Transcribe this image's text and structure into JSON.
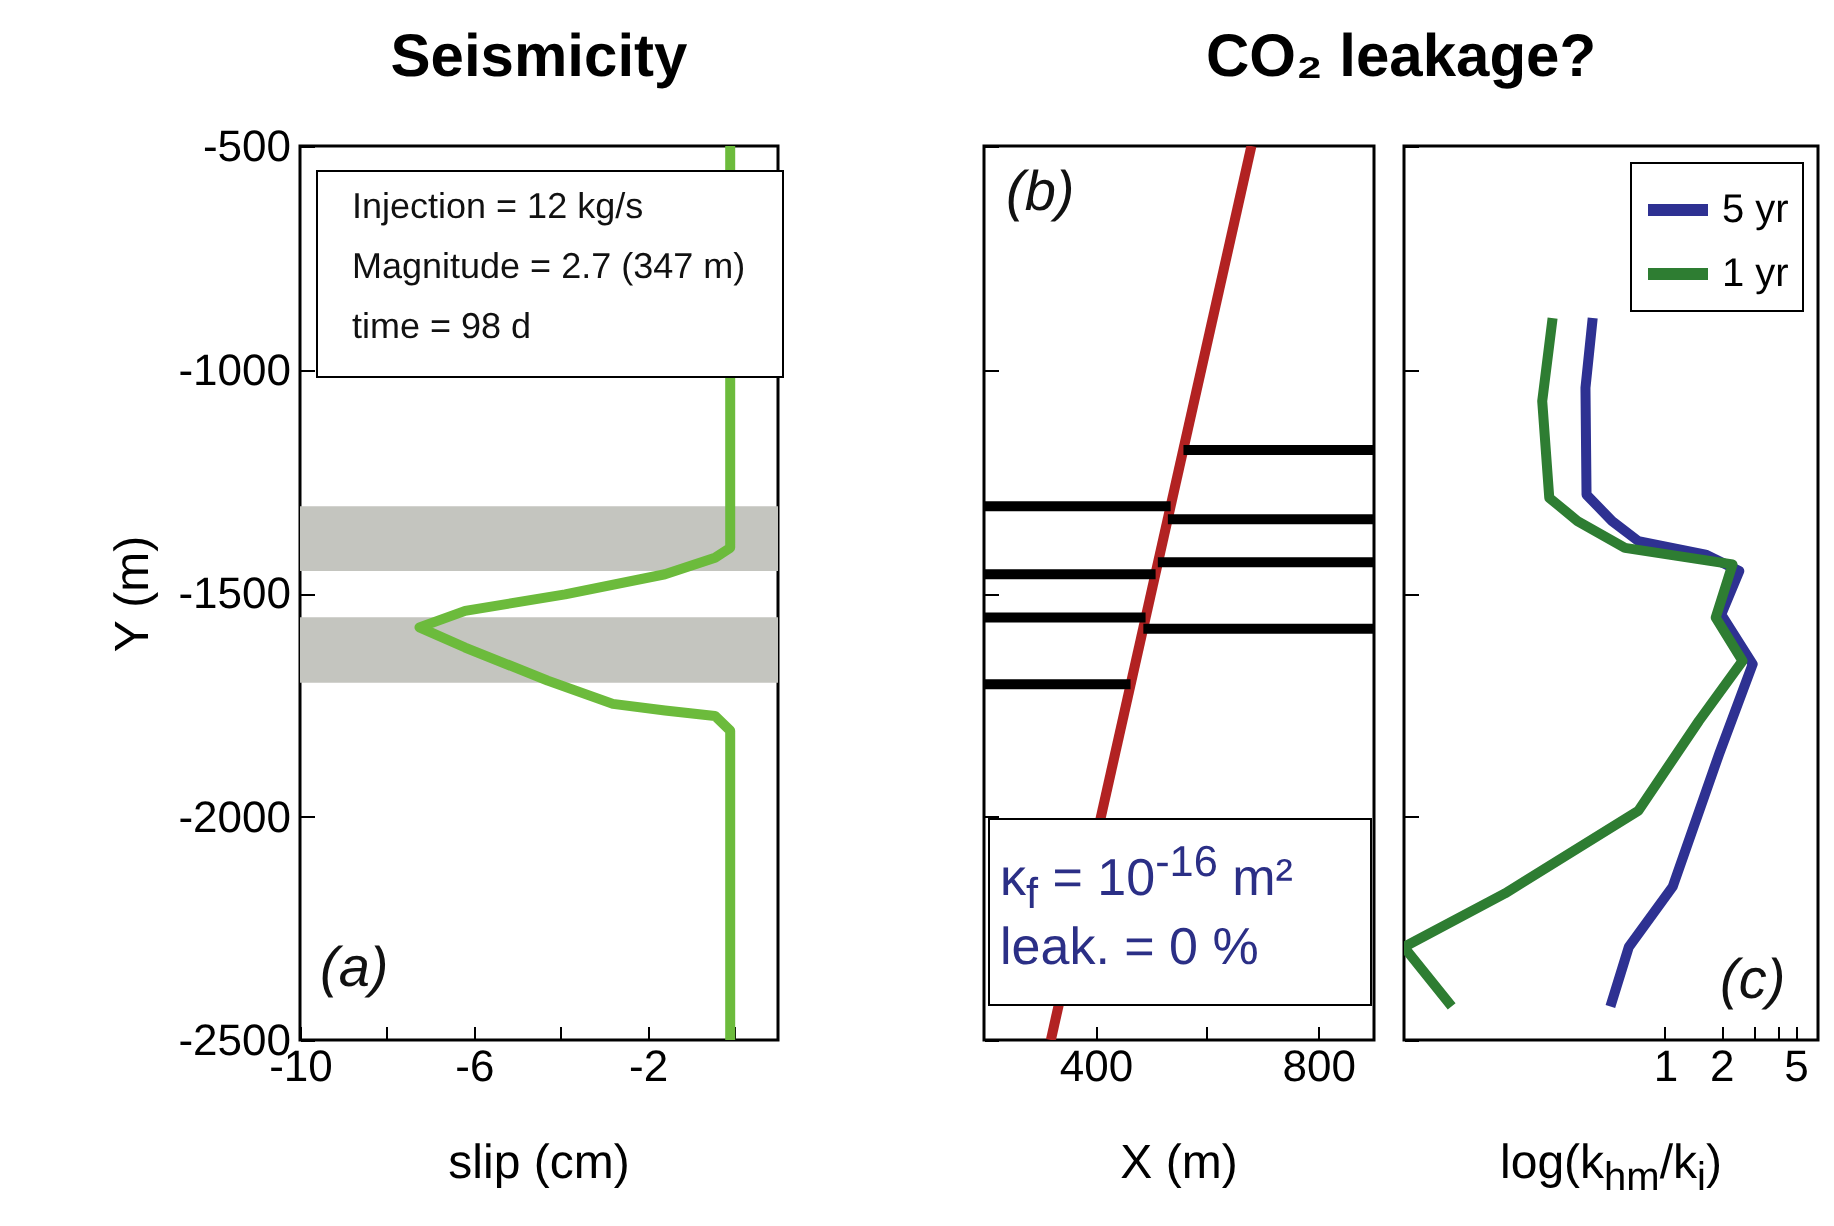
{
  "chart_data": [
    {
      "type": "line",
      "title": "Seismicity",
      "xlabel": "slip (cm)",
      "ylabel": "Y (m)",
      "xlim": [
        -10,
        1
      ],
      "xticks": [
        -10,
        {
          "value": -8,
          "label": null
        },
        -6,
        {
          "value": -4,
          "label": null
        },
        -2,
        {
          "value": 0,
          "label": null
        }
      ],
      "ylim": [
        -2500,
        -500
      ],
      "yticks": [
        -2500,
        -2000,
        -1500,
        -1000,
        -500
      ],
      "series": [
        {
          "color": "#6cbb3c",
          "x": [
            -0.1,
            -0.1,
            -0.45,
            -1.6,
            -3.9,
            -6.2,
            -7.25,
            -6.2,
            -4.3,
            -2.8,
            -1.6,
            -0.45,
            -0.1,
            -0.1
          ],
          "values": [
            -500,
            -1399,
            -1421,
            -1458,
            -1503,
            -1540,
            -1577,
            -1622,
            -1696,
            -1748,
            -1763,
            -1775,
            -1808,
            -2500
          ]
        }
      ],
      "bands": [
        {
          "axis": "y",
          "from": -1306,
          "to": -1451,
          "color": "#c4c5bf"
        },
        {
          "axis": "y",
          "from": -1554,
          "to": -1701,
          "color": "#c4c5bf"
        }
      ],
      "annotations": [
        "Injection = 12 kg/s",
        "Magnitude = 2.7 (347 m)",
        "time = 98 d",
        "(a)"
      ]
    },
    {
      "type": "line",
      "title": "CO₂ leakage?",
      "xlabel": "X (m)",
      "xlim": [
        200,
        900
      ],
      "xticks": [
        400,
        {
          "value": 600,
          "label": null
        },
        800
      ],
      "ylim": [
        -2500,
        -500
      ],
      "yticks": [
        -2500,
        -2000,
        -1500,
        -1000,
        -500
      ],
      "tick_labels": "x",
      "series": [
        {
          "color": "#b22222",
          "x": [
            320,
            680
          ],
          "values": [
            -2500,
            -500
          ]
        },
        {
          "color": "#000000",
          "x": [
            200,
            535
          ],
          "values": [
            -1306,
            -1306
          ]
        },
        {
          "color": "#000000",
          "x": [
            200,
            508
          ],
          "values": [
            -1458,
            -1458
          ]
        },
        {
          "color": "#000000",
          "x": [
            200,
            490
          ],
          "values": [
            -1555,
            -1555
          ]
        },
        {
          "color": "#000000",
          "x": [
            200,
            463
          ],
          "values": [
            -1704,
            -1704
          ]
        },
        {
          "color": "#000000",
          "x": [
            558,
            900
          ],
          "values": [
            -1180,
            -1180
          ]
        },
        {
          "color": "#000000",
          "x": [
            530,
            900
          ],
          "values": [
            -1335,
            -1335
          ]
        },
        {
          "color": "#000000",
          "x": [
            512,
            900
          ],
          "values": [
            -1431,
            -1431
          ]
        },
        {
          "color": "#000000",
          "x": [
            486,
            900
          ],
          "values": [
            -1580,
            -1580
          ]
        }
      ],
      "annotations": [
        "(b)",
        "κ$_{f}$ = 10$^{-16}$ m²",
        "leak. = 0 %"
      ]
    },
    {
      "type": "line",
      "xlabel": "log(k$_{hm}$/k$_{i}$)",
      "log": "x",
      "xlim": [
        0.04,
        6.6
      ],
      "xticks": [
        1,
        2,
        {
          "value": 3,
          "label": null
        },
        {
          "value": 4,
          "label": null
        },
        5
      ],
      "ylim": [
        -2500,
        -500
      ],
      "yticks": [
        -2500,
        -2000,
        -1500,
        -1000,
        -500
      ],
      "tick_labels": "x",
      "legend": "top right",
      "series": [
        {
          "name": "5 yr",
          "color": "#2e3192",
          "x": [
            0.41,
            0.375,
            0.38,
            0.52,
            0.72,
            1.65,
            2.5,
            2.0,
            2.95,
            1.95,
            1.1,
            0.64,
            0.51
          ],
          "values": [
            -885,
            -1041,
            -1280,
            -1339,
            -1384,
            -1414,
            -1451,
            -1548,
            -1659,
            -1860,
            -2157,
            -2292,
            -2425
          ]
        },
        {
          "name": "1 yr",
          "color": "#2e7d32",
          "x": [
            0.25,
            0.22,
            0.24,
            0.34,
            0.61,
            2.3,
            1.87,
            2.6,
            1.52,
            0.72,
            0.139,
            0.04,
            0.072
          ],
          "values": [
            -885,
            -1071,
            -1287,
            -1339,
            -1399,
            -1436,
            -1555,
            -1652,
            -1786,
            -1987,
            -2172,
            -2292,
            -2425
          ]
        }
      ],
      "annotations": [
        "(c)"
      ]
    }
  ]
}
